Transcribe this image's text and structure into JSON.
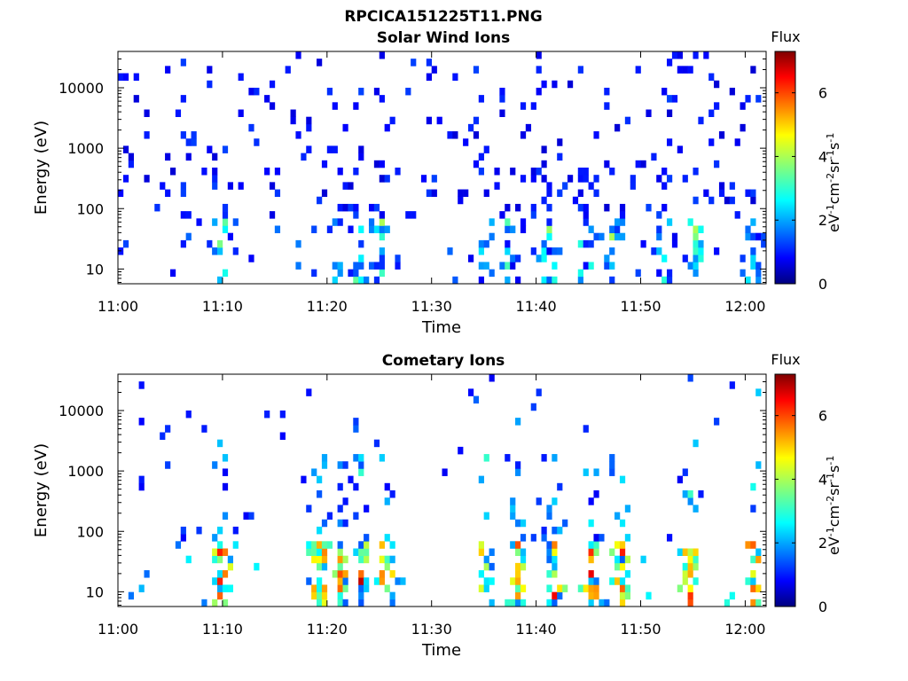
{
  "figure": {
    "title": "RPCICA151225T11.PNG"
  },
  "colorbar": {
    "label": "Flux",
    "unit_base": "eV",
    "unit_exp1": "-1",
    "unit_cm": "cm",
    "unit_exp2": "-2",
    "unit_sr": "sr",
    "unit_exp3": "-1",
    "unit_s": "s",
    "unit_exp4": "-1",
    "ticks": [
      "0",
      "2",
      "4",
      "6"
    ],
    "range": [
      0,
      7.3
    ],
    "colormap": "jet"
  },
  "chart_data": [
    {
      "type": "heatmap",
      "title": "Solar Wind Ions",
      "xlabel": "Time",
      "ylabel": "Energy (eV)",
      "x_ticks": [
        "11:00",
        "11:10",
        "11:20",
        "11:30",
        "11:40",
        "11:50",
        "12:00"
      ],
      "x_tick_minutes": [
        0,
        10,
        20,
        30,
        40,
        50,
        60
      ],
      "xlim_minutes": [
        0,
        62
      ],
      "y_ticks": [
        "10",
        "100",
        "1000",
        "10000"
      ],
      "y_tick_values": [
        10,
        100,
        1000,
        10000
      ],
      "ylim": [
        5.7,
        40000
      ],
      "yscale": "log",
      "zlabel": "Flux",
      "zlim": [
        0,
        7.3
      ],
      "grid": false,
      "description_low_energy_bursts_minutes": [
        9.5,
        10,
        21,
        22.5,
        25,
        35,
        37,
        41,
        44.5,
        47,
        52,
        55,
        60.5
      ]
    },
    {
      "type": "heatmap",
      "title": "Cometary Ions",
      "xlabel": "Time",
      "ylabel": "Energy (eV)",
      "x_ticks": [
        "11:00",
        "11:10",
        "11:20",
        "11:30",
        "11:40",
        "11:50",
        "12:00"
      ],
      "x_tick_minutes": [
        0,
        10,
        20,
        30,
        40,
        50,
        60
      ],
      "xlim_minutes": [
        0,
        62
      ],
      "y_ticks": [
        "10",
        "100",
        "1000",
        "10000"
      ],
      "y_tick_values": [
        10,
        100,
        1000,
        10000
      ],
      "ylim": [
        5.7,
        40000
      ],
      "yscale": "log",
      "zlabel": "Flux",
      "zlim": [
        0,
        7.3
      ],
      "grid": false,
      "description_high_flux_bursts_minutes": [
        9.7,
        19,
        21,
        23,
        25.5,
        35,
        38,
        41.5,
        45,
        48,
        54.5,
        60.5
      ]
    }
  ]
}
